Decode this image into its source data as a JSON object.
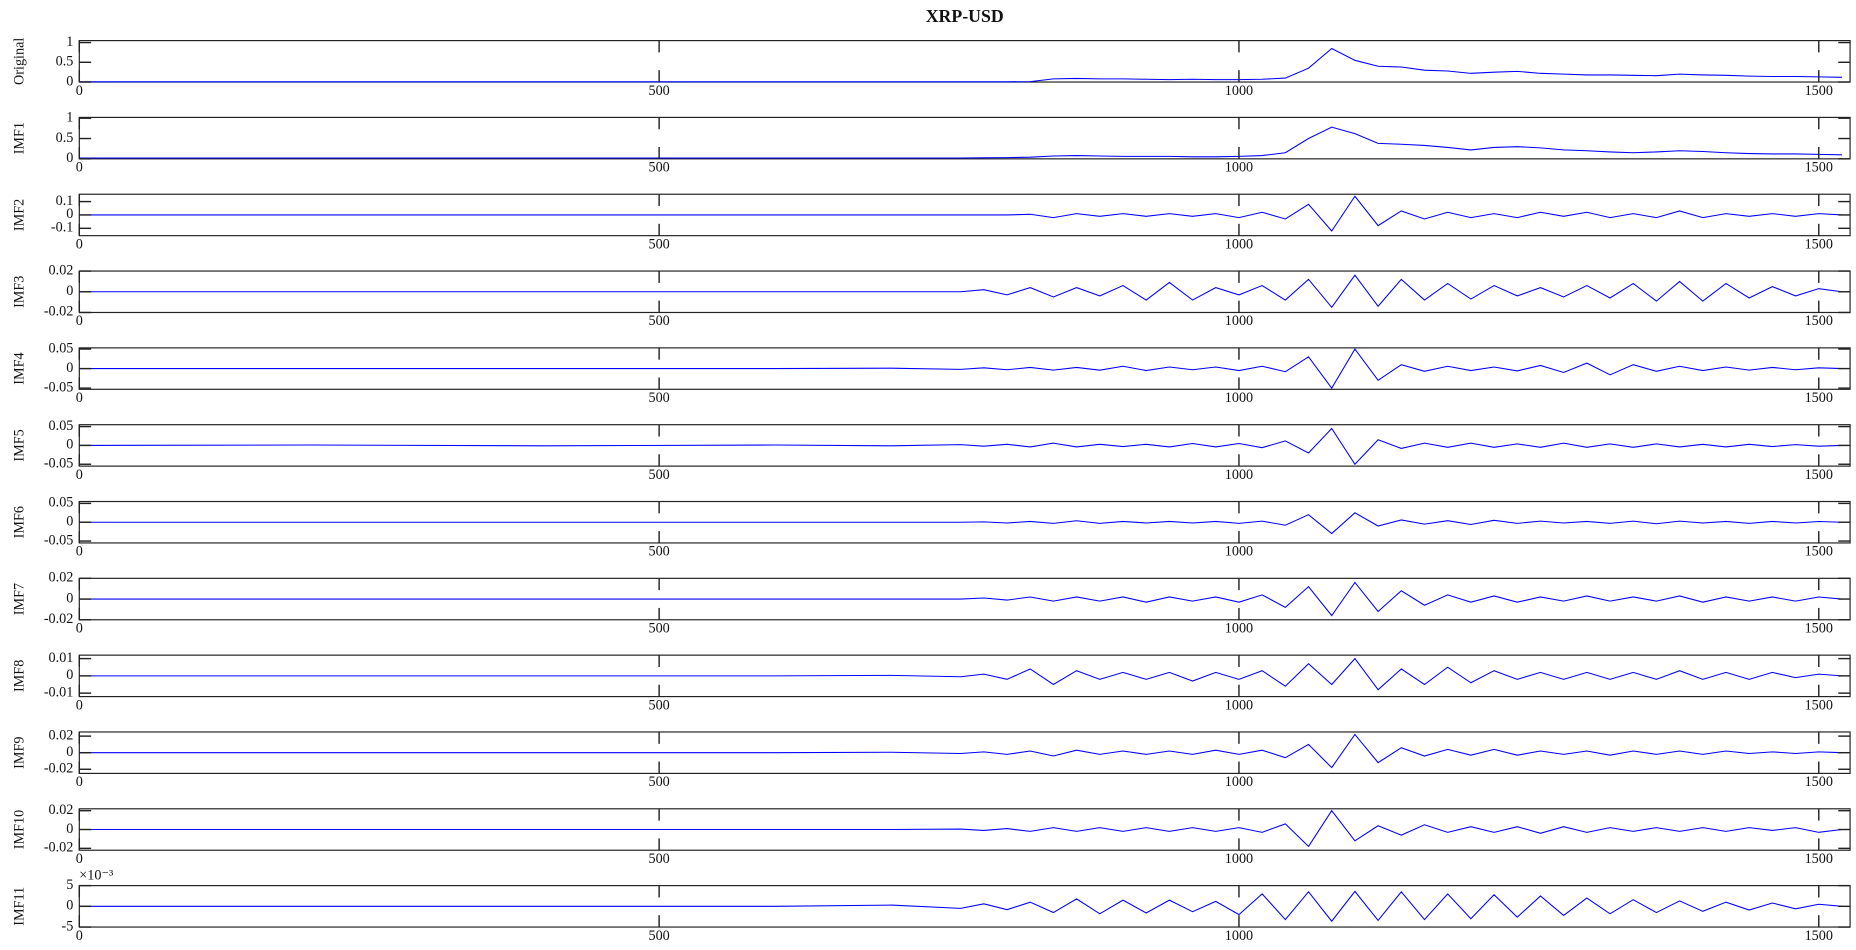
{
  "chart_data": [
    {
      "type": "line",
      "title": "XRP-USD",
      "ylabel": "Original",
      "x": [
        0,
        200,
        400,
        600,
        700,
        760,
        780,
        800,
        820,
        840,
        860,
        880,
        900,
        920,
        940,
        960,
        980,
        1000,
        1020,
        1040,
        1060,
        1080,
        1100,
        1120,
        1140,
        1160,
        1180,
        1200,
        1220,
        1240,
        1260,
        1280,
        1300,
        1320,
        1340,
        1360,
        1380,
        1400,
        1420,
        1440,
        1460,
        1480,
        1500,
        1520
      ],
      "values": [
        0.005,
        0.005,
        0.005,
        0.005,
        0.005,
        0.005,
        0.005,
        0.006,
        0.01,
        0.08,
        0.09,
        0.08,
        0.08,
        0.07,
        0.06,
        0.07,
        0.06,
        0.06,
        0.07,
        0.1,
        0.35,
        0.85,
        0.55,
        0.4,
        0.38,
        0.3,
        0.28,
        0.22,
        0.25,
        0.27,
        0.22,
        0.2,
        0.18,
        0.18,
        0.17,
        0.16,
        0.2,
        0.18,
        0.17,
        0.15,
        0.14,
        0.14,
        0.13,
        0.12
      ],
      "color": "#0000ff",
      "xlim": [
        0,
        1527
      ],
      "xticks": [
        0,
        500,
        1000,
        1500
      ],
      "ylim": [
        0,
        1.05
      ],
      "yticks": [
        0,
        0.5,
        1
      ]
    },
    {
      "type": "line",
      "ylabel": "IMF1",
      "x": [
        0,
        200,
        400,
        600,
        700,
        760,
        780,
        800,
        820,
        840,
        860,
        880,
        900,
        920,
        940,
        960,
        980,
        1000,
        1020,
        1040,
        1060,
        1080,
        1100,
        1120,
        1140,
        1160,
        1180,
        1200,
        1220,
        1240,
        1260,
        1280,
        1300,
        1320,
        1340,
        1360,
        1380,
        1400,
        1420,
        1440,
        1460,
        1480,
        1500,
        1520
      ],
      "values": [
        0.02,
        0.02,
        0.02,
        0.02,
        0.02,
        0.02,
        0.025,
        0.03,
        0.04,
        0.07,
        0.08,
        0.07,
        0.06,
        0.06,
        0.06,
        0.05,
        0.05,
        0.06,
        0.08,
        0.15,
        0.5,
        0.78,
        0.62,
        0.38,
        0.36,
        0.33,
        0.28,
        0.22,
        0.28,
        0.3,
        0.27,
        0.22,
        0.2,
        0.17,
        0.15,
        0.17,
        0.2,
        0.18,
        0.15,
        0.13,
        0.12,
        0.12,
        0.11,
        0.1
      ],
      "color": "#0000ff",
      "xlim": [
        0,
        1527
      ],
      "xticks": [
        0,
        500,
        1000,
        1500
      ],
      "ylim": [
        0,
        1.02
      ],
      "yticks": [
        0,
        0.5,
        1
      ]
    },
    {
      "type": "line",
      "ylabel": "IMF2",
      "x": [
        0,
        200,
        400,
        600,
        700,
        760,
        780,
        800,
        820,
        840,
        860,
        880,
        900,
        920,
        940,
        960,
        980,
        1000,
        1020,
        1040,
        1060,
        1080,
        1100,
        1120,
        1140,
        1160,
        1180,
        1200,
        1220,
        1240,
        1260,
        1280,
        1300,
        1320,
        1340,
        1360,
        1380,
        1400,
        1420,
        1440,
        1460,
        1480,
        1500,
        1520
      ],
      "values": [
        0,
        0,
        0,
        0,
        0,
        0,
        0,
        0,
        0.005,
        -0.02,
        0.01,
        -0.01,
        0.01,
        -0.01,
        0.01,
        -0.01,
        0.01,
        -0.02,
        0.02,
        -0.03,
        0.08,
        -0.12,
        0.14,
        -0.08,
        0.03,
        -0.03,
        0.02,
        -0.02,
        0.01,
        -0.02,
        0.02,
        -0.01,
        0.02,
        -0.02,
        0.01,
        -0.02,
        0.03,
        -0.02,
        0.01,
        -0.01,
        0.01,
        -0.01,
        0.01,
        0
      ],
      "color": "#0000ff",
      "xlim": [
        0,
        1527
      ],
      "xticks": [
        0,
        500,
        1000,
        1500
      ],
      "ylim": [
        -0.155,
        0.155
      ],
      "yticks": [
        -0.1,
        0,
        0.1
      ]
    },
    {
      "type": "line",
      "ylabel": "IMF3",
      "x": [
        0,
        200,
        400,
        600,
        700,
        760,
        780,
        800,
        820,
        840,
        860,
        880,
        900,
        920,
        940,
        960,
        980,
        1000,
        1020,
        1040,
        1060,
        1080,
        1100,
        1120,
        1140,
        1160,
        1180,
        1200,
        1220,
        1240,
        1260,
        1280,
        1300,
        1320,
        1340,
        1360,
        1380,
        1400,
        1420,
        1440,
        1460,
        1480,
        1500,
        1520
      ],
      "values": [
        0,
        0,
        0,
        0,
        0,
        0,
        0.002,
        -0.003,
        0.004,
        -0.005,
        0.004,
        -0.004,
        0.006,
        -0.008,
        0.009,
        -0.008,
        0.004,
        -0.003,
        0.006,
        -0.008,
        0.012,
        -0.015,
        0.016,
        -0.014,
        0.012,
        -0.008,
        0.008,
        -0.007,
        0.006,
        -0.004,
        0.004,
        -0.005,
        0.006,
        -0.006,
        0.008,
        -0.009,
        0.01,
        -0.009,
        0.008,
        -0.006,
        0.005,
        -0.004,
        0.003,
        0
      ],
      "color": "#0000ff",
      "xlim": [
        0,
        1527
      ],
      "xticks": [
        0,
        500,
        1000,
        1500
      ],
      "ylim": [
        -0.02,
        0.02
      ],
      "yticks": [
        -0.02,
        0,
        0.02
      ]
    },
    {
      "type": "line",
      "ylabel": "IMF4",
      "x": [
        0,
        200,
        400,
        600,
        700,
        760,
        780,
        800,
        820,
        840,
        860,
        880,
        900,
        920,
        940,
        960,
        980,
        1000,
        1020,
        1040,
        1060,
        1080,
        1100,
        1120,
        1140,
        1160,
        1180,
        1200,
        1220,
        1240,
        1260,
        1280,
        1300,
        1320,
        1340,
        1360,
        1380,
        1400,
        1420,
        1440,
        1460,
        1480,
        1500,
        1520
      ],
      "values": [
        0,
        0,
        0,
        0,
        0.001,
        -0.002,
        0.002,
        -0.003,
        0.003,
        -0.004,
        0.003,
        -0.004,
        0.006,
        -0.005,
        0.004,
        -0.003,
        0.004,
        -0.005,
        0.006,
        -0.008,
        0.03,
        -0.05,
        0.05,
        -0.03,
        0.01,
        -0.007,
        0.006,
        -0.005,
        0.004,
        -0.006,
        0.008,
        -0.01,
        0.014,
        -0.016,
        0.01,
        -0.007,
        0.006,
        -0.005,
        0.004,
        -0.004,
        0.003,
        -0.003,
        0.002,
        0
      ],
      "color": "#0000ff",
      "xlim": [
        0,
        1527
      ],
      "xticks": [
        0,
        500,
        1000,
        1500
      ],
      "ylim": [
        -0.053,
        0.053
      ],
      "yticks": [
        -0.05,
        0,
        0.05
      ]
    },
    {
      "type": "line",
      "ylabel": "IMF5",
      "x": [
        0,
        200,
        400,
        600,
        700,
        760,
        780,
        800,
        820,
        840,
        860,
        880,
        900,
        920,
        940,
        960,
        980,
        1000,
        1020,
        1040,
        1060,
        1080,
        1100,
        1120,
        1140,
        1160,
        1180,
        1200,
        1220,
        1240,
        1260,
        1280,
        1300,
        1320,
        1340,
        1360,
        1380,
        1400,
        1420,
        1440,
        1460,
        1480,
        1500,
        1520
      ],
      "values": [
        0,
        0.001,
        -0.001,
        0.001,
        -0.001,
        0.002,
        -0.002,
        0.003,
        -0.004,
        0.006,
        -0.004,
        0.003,
        -0.003,
        0.003,
        -0.004,
        0.005,
        -0.004,
        0.005,
        -0.006,
        0.012,
        -0.02,
        0.045,
        -0.05,
        0.015,
        -0.008,
        0.006,
        -0.005,
        0.006,
        -0.005,
        0.004,
        -0.005,
        0.006,
        -0.005,
        0.004,
        -0.005,
        0.004,
        -0.004,
        0.003,
        -0.004,
        0.003,
        -0.003,
        0.002,
        -0.002,
        0
      ],
      "color": "#0000ff",
      "xlim": [
        0,
        1527
      ],
      "xticks": [
        0,
        500,
        1000,
        1500
      ],
      "ylim": [
        -0.055,
        0.055
      ],
      "yticks": [
        -0.05,
        0,
        0.05
      ]
    },
    {
      "type": "line",
      "ylabel": "IMF6",
      "x": [
        0,
        200,
        400,
        600,
        700,
        760,
        780,
        800,
        820,
        840,
        860,
        880,
        900,
        920,
        940,
        960,
        980,
        1000,
        1020,
        1040,
        1060,
        1080,
        1100,
        1120,
        1140,
        1160,
        1180,
        1200,
        1220,
        1240,
        1260,
        1280,
        1300,
        1320,
        1340,
        1360,
        1380,
        1400,
        1420,
        1440,
        1460,
        1480,
        1500,
        1520
      ],
      "values": [
        0,
        0,
        0,
        0,
        0,
        0,
        0.001,
        -0.002,
        0.002,
        -0.003,
        0.004,
        -0.003,
        0.002,
        -0.002,
        0.002,
        -0.002,
        0.002,
        -0.003,
        0.003,
        -0.008,
        0.02,
        -0.03,
        0.025,
        -0.01,
        0.006,
        -0.005,
        0.004,
        -0.006,
        0.005,
        -0.003,
        0.003,
        -0.002,
        0.002,
        -0.003,
        0.003,
        -0.004,
        0.003,
        -0.002,
        0.002,
        -0.003,
        0.002,
        -0.002,
        0.002,
        0
      ],
      "color": "#0000ff",
      "xlim": [
        0,
        1527
      ],
      "xticks": [
        0,
        500,
        1000,
        1500
      ],
      "ylim": [
        -0.055,
        0.055
      ],
      "yticks": [
        -0.05,
        0,
        0.05
      ]
    },
    {
      "type": "line",
      "ylabel": "IMF7",
      "x": [
        0,
        200,
        400,
        600,
        700,
        760,
        780,
        800,
        820,
        840,
        860,
        880,
        900,
        920,
        940,
        960,
        980,
        1000,
        1020,
        1040,
        1060,
        1080,
        1100,
        1120,
        1140,
        1160,
        1180,
        1200,
        1220,
        1240,
        1260,
        1280,
        1300,
        1320,
        1340,
        1360,
        1380,
        1400,
        1420,
        1440,
        1460,
        1480,
        1500,
        1520
      ],
      "values": [
        0,
        0,
        0,
        0,
        0,
        0,
        0.001,
        -0.001,
        0.002,
        -0.002,
        0.002,
        -0.002,
        0.002,
        -0.003,
        0.002,
        -0.002,
        0.002,
        -0.003,
        0.004,
        -0.008,
        0.012,
        -0.016,
        0.016,
        -0.012,
        0.008,
        -0.006,
        0.004,
        -0.003,
        0.003,
        -0.003,
        0.002,
        -0.002,
        0.003,
        -0.002,
        0.002,
        -0.002,
        0.003,
        -0.003,
        0.002,
        -0.002,
        0.002,
        -0.002,
        0.002,
        0
      ],
      "color": "#0000ff",
      "xlim": [
        0,
        1527
      ],
      "xticks": [
        0,
        500,
        1000,
        1500
      ],
      "ylim": [
        -0.02,
        0.02
      ],
      "yticks": [
        -0.02,
        0,
        0.02
      ]
    },
    {
      "type": "line",
      "ylabel": "IMF8",
      "x": [
        0,
        200,
        400,
        600,
        700,
        760,
        780,
        800,
        820,
        840,
        860,
        880,
        900,
        920,
        940,
        960,
        980,
        1000,
        1020,
        1040,
        1060,
        1080,
        1100,
        1120,
        1140,
        1160,
        1180,
        1200,
        1220,
        1240,
        1260,
        1280,
        1300,
        1320,
        1340,
        1360,
        1380,
        1400,
        1420,
        1440,
        1460,
        1480,
        1500,
        1520
      ],
      "values": [
        0,
        0,
        0,
        0,
        0.0003,
        -0.0005,
        0.001,
        -0.002,
        0.004,
        -0.005,
        0.003,
        -0.002,
        0.002,
        -0.002,
        0.002,
        -0.003,
        0.002,
        -0.002,
        0.003,
        -0.006,
        0.007,
        -0.005,
        0.01,
        -0.008,
        0.004,
        -0.005,
        0.005,
        -0.004,
        0.003,
        -0.002,
        0.002,
        -0.002,
        0.002,
        -0.002,
        0.002,
        -0.002,
        0.003,
        -0.002,
        0.002,
        -0.002,
        0.002,
        -0.001,
        0.001,
        0
      ],
      "color": "#0000ff",
      "xlim": [
        0,
        1527
      ],
      "xticks": [
        0,
        500,
        1000,
        1500
      ],
      "ylim": [
        -0.012,
        0.012
      ],
      "yticks": [
        -0.01,
        0,
        0.01
      ]
    },
    {
      "type": "line",
      "ylabel": "IMF9",
      "x": [
        0,
        200,
        400,
        600,
        700,
        760,
        780,
        800,
        820,
        840,
        860,
        880,
        900,
        920,
        940,
        960,
        980,
        1000,
        1020,
        1040,
        1060,
        1080,
        1100,
        1120,
        1140,
        1160,
        1180,
        1200,
        1220,
        1240,
        1260,
        1280,
        1300,
        1320,
        1340,
        1360,
        1380,
        1400,
        1420,
        1440,
        1460,
        1480,
        1500,
        1520
      ],
      "values": [
        0,
        0,
        0,
        0,
        0.0005,
        -0.001,
        0.001,
        -0.002,
        0.002,
        -0.004,
        0.003,
        -0.002,
        0.002,
        -0.002,
        0.002,
        -0.002,
        0.003,
        -0.002,
        0.003,
        -0.006,
        0.01,
        -0.018,
        0.022,
        -0.012,
        0.006,
        -0.004,
        0.004,
        -0.003,
        0.004,
        -0.003,
        0.002,
        -0.002,
        0.002,
        -0.003,
        0.002,
        -0.002,
        0.002,
        -0.002,
        0.002,
        -0.001,
        0.001,
        -0.001,
        0.001,
        0
      ],
      "color": "#0000ff",
      "xlim": [
        0,
        1527
      ],
      "xticks": [
        0,
        500,
        1000,
        1500
      ],
      "ylim": [
        -0.025,
        0.025
      ],
      "yticks": [
        -0.02,
        0,
        0.02
      ]
    },
    {
      "type": "line",
      "ylabel": "IMF10",
      "x": [
        0,
        200,
        400,
        600,
        700,
        760,
        780,
        800,
        820,
        840,
        860,
        880,
        900,
        920,
        940,
        960,
        980,
        1000,
        1020,
        1040,
        1060,
        1080,
        1100,
        1120,
        1140,
        1160,
        1180,
        1200,
        1220,
        1240,
        1260,
        1280,
        1300,
        1320,
        1340,
        1360,
        1380,
        1400,
        1420,
        1440,
        1460,
        1480,
        1500,
        1520
      ],
      "values": [
        0,
        0,
        0,
        0,
        0,
        0.0005,
        -0.001,
        0.001,
        -0.002,
        0.002,
        -0.002,
        0.002,
        -0.002,
        0.002,
        -0.002,
        0.002,
        -0.002,
        0.002,
        -0.003,
        0.006,
        -0.018,
        0.02,
        -0.012,
        0.004,
        -0.006,
        0.005,
        -0.003,
        0.003,
        -0.003,
        0.003,
        -0.004,
        0.003,
        -0.003,
        0.002,
        -0.002,
        0.002,
        -0.002,
        0.002,
        -0.002,
        0.002,
        -0.001,
        0.002,
        -0.003,
        0
      ],
      "color": "#0000ff",
      "xlim": [
        0,
        1527
      ],
      "xticks": [
        0,
        500,
        1000,
        1500
      ],
      "ylim": [
        -0.022,
        0.022
      ],
      "yticks": [
        -0.02,
        0,
        0.02
      ]
    },
    {
      "type": "line",
      "ylabel": "IMF11",
      "axis_multiplier": "×10⁻³",
      "x": [
        0,
        200,
        400,
        600,
        700,
        760,
        780,
        800,
        820,
        840,
        860,
        880,
        900,
        920,
        940,
        960,
        980,
        1000,
        1020,
        1040,
        1060,
        1080,
        1100,
        1120,
        1140,
        1160,
        1180,
        1200,
        1220,
        1240,
        1260,
        1280,
        1300,
        1320,
        1340,
        1360,
        1380,
        1400,
        1420,
        1440,
        1460,
        1480,
        1500,
        1520
      ],
      "values": [
        0,
        0,
        0,
        0,
        0.3,
        -0.5,
        0.6,
        -0.8,
        1,
        -1.5,
        1.8,
        -1.8,
        1.5,
        -1.6,
        1.5,
        -1.3,
        1.2,
        -2,
        3,
        -3.2,
        3.5,
        -3.6,
        3.6,
        -3.4,
        3.5,
        -3.2,
        3,
        -3,
        2.8,
        -2.6,
        2.5,
        -2.2,
        2,
        -1.8,
        1.6,
        -1.5,
        1.3,
        -1.2,
        1,
        -0.9,
        0.8,
        -0.6,
        0.5,
        0
      ],
      "color": "#0000ff",
      "xlim": [
        0,
        1527
      ],
      "xticks": [
        0,
        500,
        1000,
        1500
      ],
      "ylim": [
        -5,
        5
      ],
      "yticks": [
        -5,
        0,
        5
      ]
    }
  ]
}
